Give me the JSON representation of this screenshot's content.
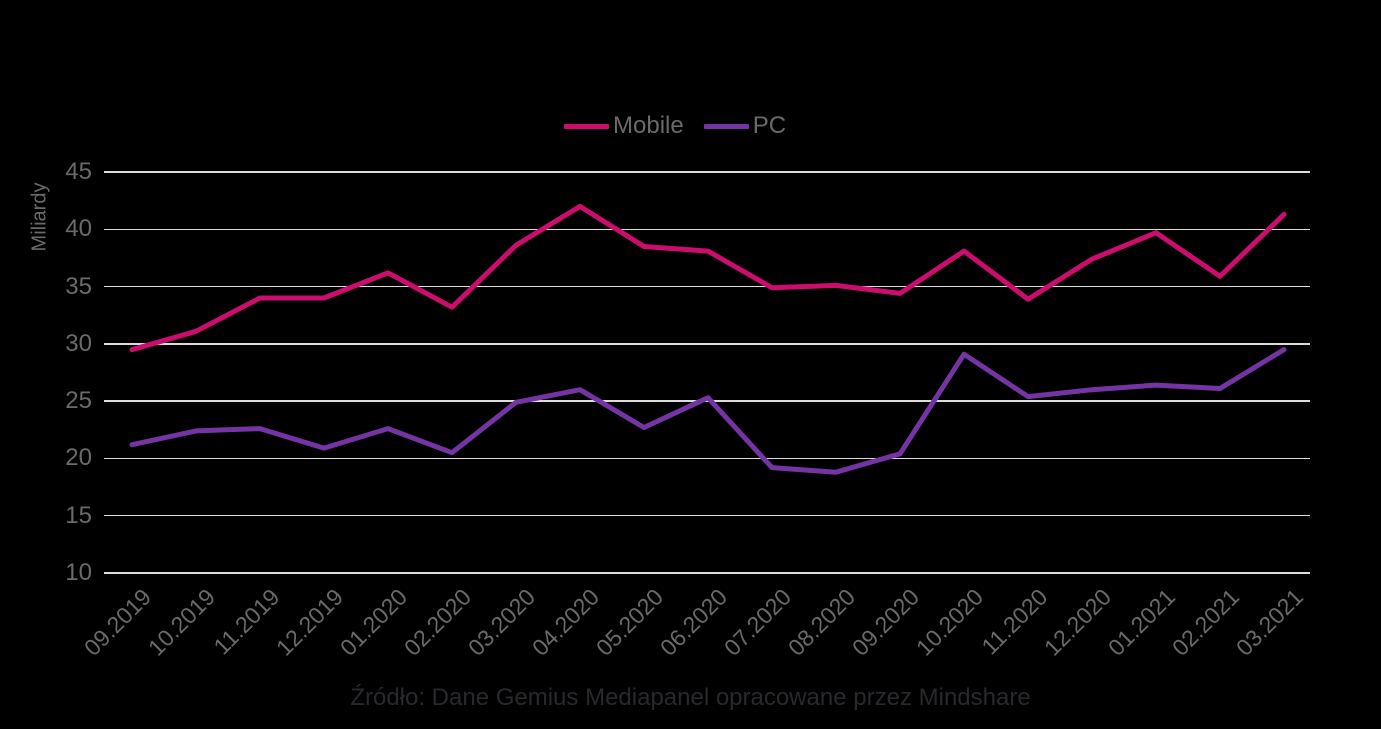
{
  "page": {
    "background": "#000000",
    "text_gray": "#6a6a6a",
    "gridline_color": "#dcdcdc"
  },
  "legend": {
    "items": [
      {
        "label": "Mobile",
        "color": "#cb0d6e"
      },
      {
        "label": "PC",
        "color": "#7434a4"
      }
    ]
  },
  "y_axis": {
    "title": "Miliardy",
    "ticks": [
      45,
      40,
      35,
      30,
      25,
      20,
      15,
      10
    ]
  },
  "x_axis": {
    "labels": [
      "09.2019",
      "10.2019",
      "11.2019",
      "12.2019",
      "01.2020",
      "02.2020",
      "03.2020",
      "04.2020",
      "05.2020",
      "06.2020",
      "07.2020",
      "08.2020",
      "09.2020",
      "10.2020",
      "11.2020",
      "12.2020",
      "01.2021",
      "02.2021",
      "03.2021"
    ]
  },
  "caption": "Źródło: Dane Gemius Mediapanel opracowane przez Mindshare",
  "chart_data": {
    "type": "line",
    "x": [
      "09.2019",
      "10.2019",
      "11.2019",
      "12.2019",
      "01.2020",
      "02.2020",
      "03.2020",
      "04.2020",
      "05.2020",
      "06.2020",
      "07.2020",
      "08.2020",
      "09.2020",
      "10.2020",
      "11.2020",
      "12.2020",
      "01.2021",
      "02.2021",
      "03.2021"
    ],
    "series": [
      {
        "name": "Mobile",
        "color": "#cb0d6e",
        "values": [
          29.5,
          31.1,
          34.0,
          34.0,
          36.2,
          33.2,
          38.6,
          42.0,
          38.5,
          38.1,
          34.9,
          35.1,
          34.4,
          38.1,
          33.9,
          37.4,
          39.7,
          35.9,
          41.3
        ]
      },
      {
        "name": "PC",
        "color": "#7434a4",
        "values": [
          21.2,
          22.4,
          22.6,
          20.9,
          22.6,
          20.5,
          24.9,
          26.0,
          22.7,
          25.3,
          19.2,
          18.8,
          20.4,
          29.1,
          25.4,
          26.0,
          26.4,
          26.1,
          29.5
        ]
      }
    ],
    "title": "",
    "xlabel": "",
    "ylabel": "Miliardy",
    "ylim": [
      10,
      45
    ],
    "ytick_step": 5,
    "grid": true,
    "legend_position": "top-center",
    "source": "Źródło: Dane Gemius Mediapanel opracowane przez Mindshare"
  }
}
